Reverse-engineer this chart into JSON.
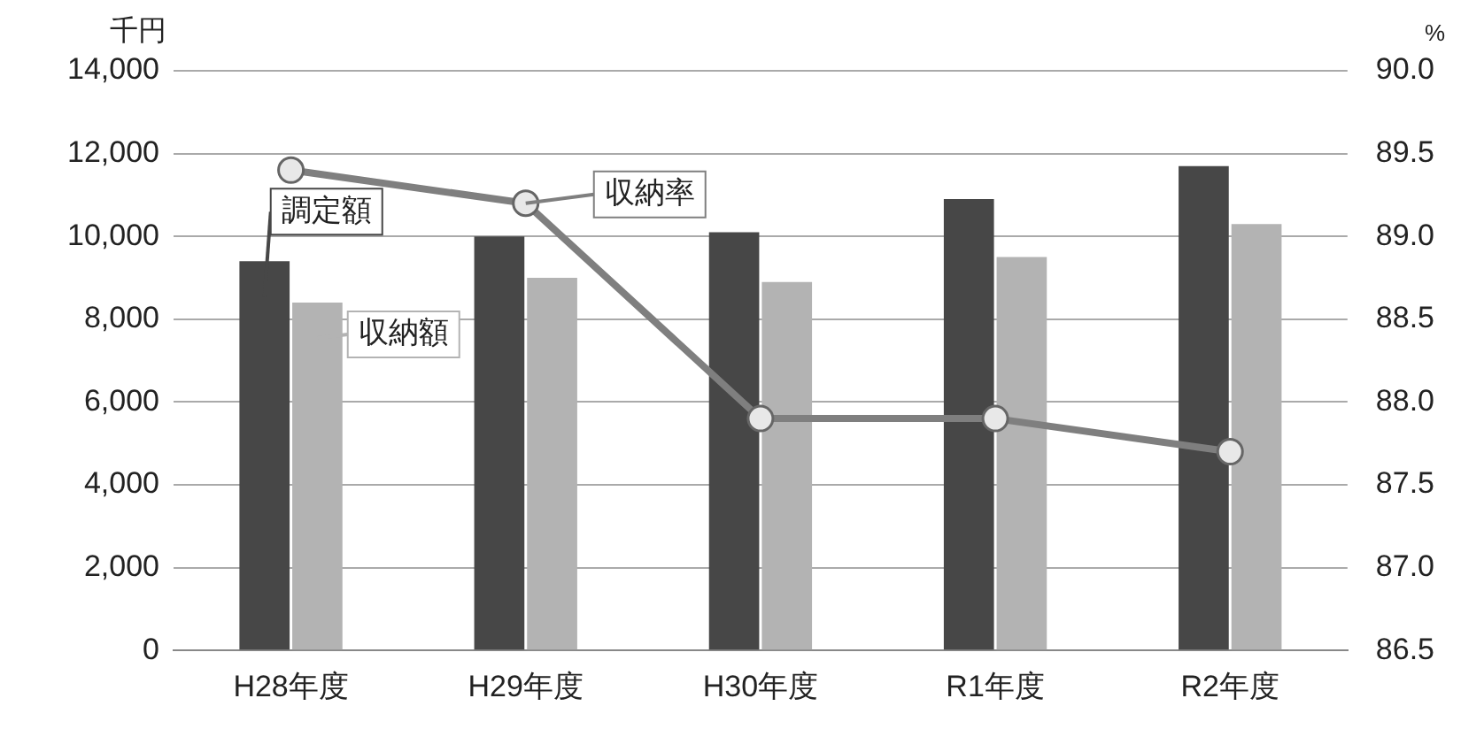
{
  "chart_data": {
    "type": "bar",
    "categories": [
      "H28年度",
      "H29年度",
      "H30年度",
      "R1年度",
      "R2年度"
    ],
    "series": [
      {
        "name": "調定額",
        "color": "#474747",
        "values": [
          9400,
          10000,
          10100,
          10900,
          11700
        ]
      },
      {
        "name": "収納額",
        "color": "#b3b3b3",
        "values": [
          8400,
          9000,
          8900,
          9500,
          10300
        ]
      },
      {
        "name": "収納率",
        "type": "line",
        "axis": "y2",
        "color": "#7f7f7f",
        "values": [
          89.4,
          89.2,
          87.9,
          87.9,
          87.7
        ]
      }
    ],
    "ylabel": "千円",
    "y2label": "%",
    "ylim": [
      0,
      14000
    ],
    "yticks": [
      {
        "value": 0,
        "label": "0"
      },
      {
        "value": 2000,
        "label": "2,000"
      },
      {
        "value": 4000,
        "label": "4,000"
      },
      {
        "value": 6000,
        "label": "6,000"
      },
      {
        "value": 8000,
        "label": "8,000"
      },
      {
        "value": 10000,
        "label": "10,000"
      },
      {
        "value": 12000,
        "label": "12,000"
      },
      {
        "value": 14000,
        "label": "14,000"
      }
    ],
    "y2lim": [
      86.5,
      90
    ],
    "y2ticks": [
      {
        "value": 86.5,
        "label": "86.5"
      },
      {
        "value": 87,
        "label": "87.0"
      },
      {
        "value": 87.5,
        "label": "87.5"
      },
      {
        "value": 88,
        "label": "88.0"
      },
      {
        "value": 88.5,
        "label": "88.5"
      },
      {
        "value": 89,
        "label": "89.0"
      },
      {
        "value": 89.5,
        "label": "89.5"
      },
      {
        "value": 90,
        "label": "90.0"
      }
    ],
    "grid": "y",
    "legend": "top left",
    "marker": "circle"
  }
}
